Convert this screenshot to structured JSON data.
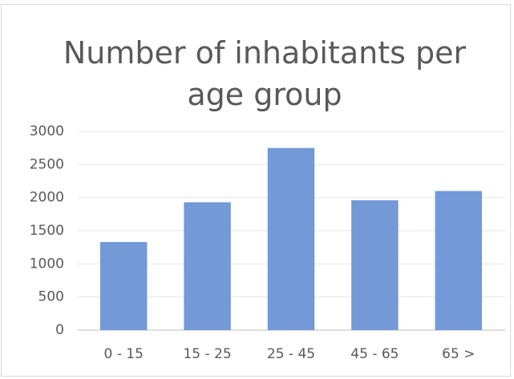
{
  "chart_data": {
    "type": "bar",
    "title": "Number of inhabitants per age group",
    "categories": [
      "0 - 15",
      "15 - 25",
      "25 - 45",
      "45 - 65",
      "65 >"
    ],
    "values": [
      1330,
      1930,
      2750,
      1960,
      2100
    ],
    "color": "#7399d6",
    "ylim": [
      0,
      3000
    ],
    "yticks": [
      0,
      500,
      1000,
      1500,
      2000,
      2500,
      3000
    ],
    "grid": true
  }
}
